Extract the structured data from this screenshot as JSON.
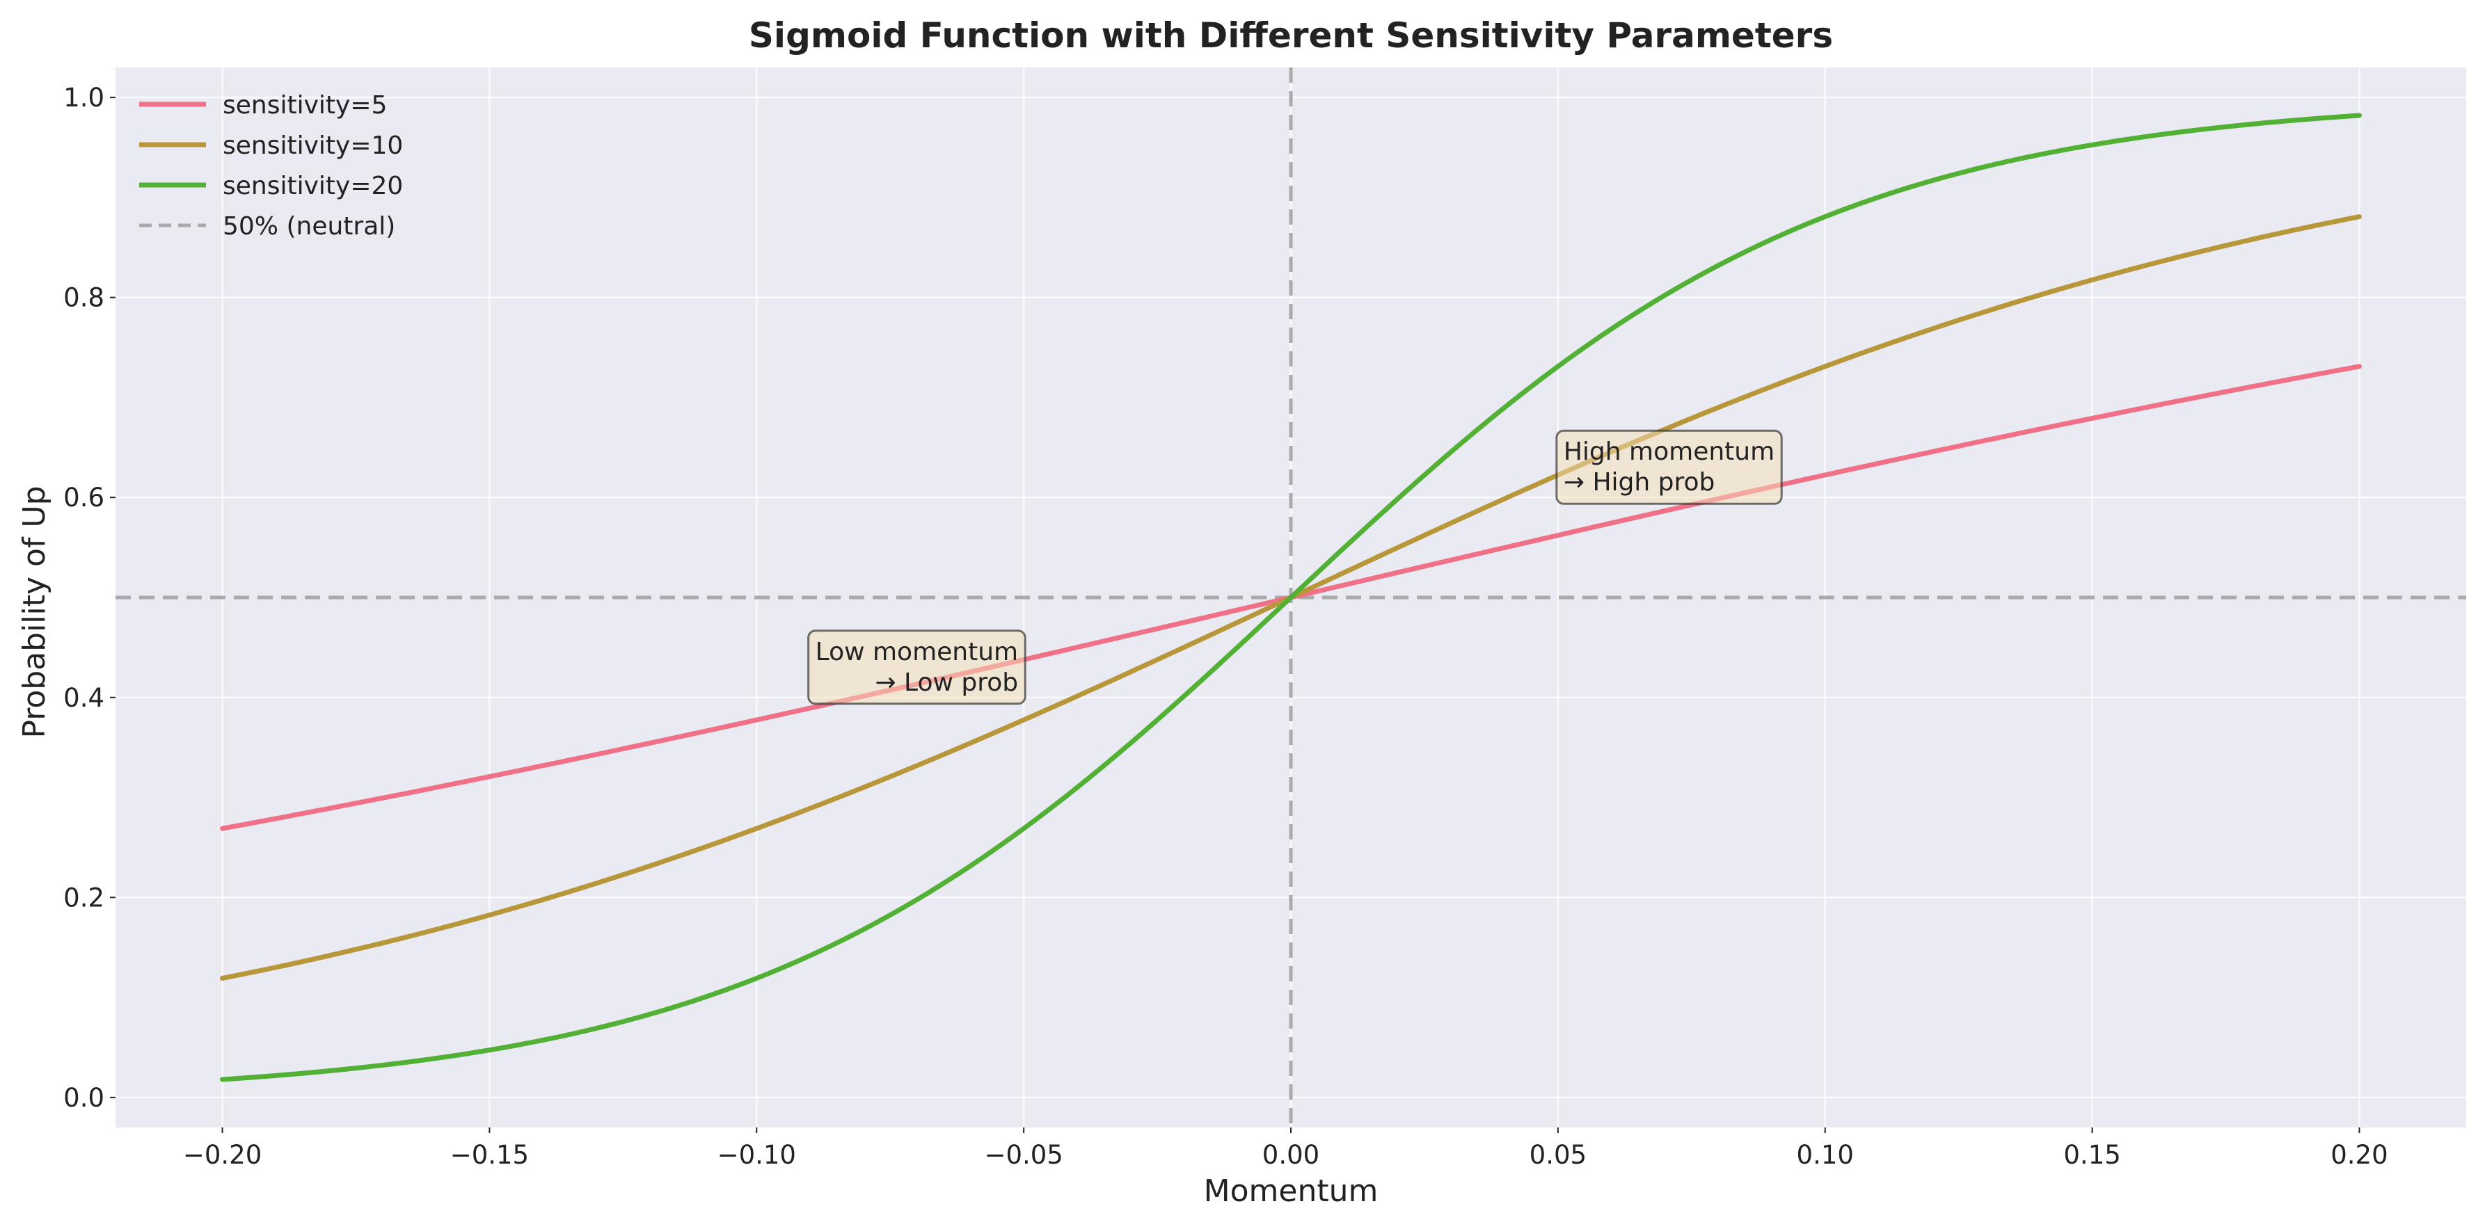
{
  "chart_data": {
    "type": "line",
    "title": "Sigmoid Function with Different Sensitivity Parameters",
    "xlabel": "Momentum",
    "ylabel": "Probability of Up",
    "xlim": [
      -0.22,
      0.22
    ],
    "ylim": [
      -0.03,
      1.03
    ],
    "xticks": [
      -0.2,
      -0.15,
      -0.1,
      -0.05,
      0.0,
      0.05,
      0.1,
      0.15,
      0.2
    ],
    "xtick_labels": [
      "−0.20",
      "−0.15",
      "−0.10",
      "−0.05",
      "0.00",
      "0.05",
      "0.10",
      "0.15",
      "0.20"
    ],
    "yticks": [
      0.0,
      0.2,
      0.4,
      0.6,
      0.8,
      1.0
    ],
    "ytick_labels": [
      "0.0",
      "0.2",
      "0.4",
      "0.6",
      "0.8",
      "1.0"
    ],
    "grid": true,
    "legend_position": "top-left",
    "x": [
      -0.2,
      -0.15,
      -0.1,
      -0.05,
      0.0,
      0.05,
      0.1,
      0.15,
      0.2
    ],
    "series": [
      {
        "name": "sensitivity=5",
        "color": "#f07088",
        "values": [
          0.269,
          0.321,
          0.378,
          0.438,
          0.5,
          0.562,
          0.622,
          0.679,
          0.731
        ]
      },
      {
        "name": "sensitivity=10",
        "color": "#b8963a",
        "values": [
          0.119,
          0.182,
          0.269,
          0.378,
          0.5,
          0.622,
          0.731,
          0.818,
          0.881
        ]
      },
      {
        "name": "sensitivity=20",
        "color": "#52b035",
        "values": [
          0.018,
          0.047,
          0.119,
          0.269,
          0.5,
          0.731,
          0.881,
          0.953,
          0.982
        ]
      }
    ],
    "reference_lines": [
      {
        "name": "50% (neutral)",
        "orientation": "horizontal",
        "value": 0.5,
        "style": "dashed",
        "color": "#aaaaaa"
      },
      {
        "orientation": "vertical",
        "value": 0.0,
        "style": "dashed",
        "color": "#aaaaaa"
      }
    ],
    "annotations": [
      {
        "lines": [
          "Low momentum",
          "→ Low prob"
        ],
        "x": -0.05,
        "y": 0.4,
        "align": "right"
      },
      {
        "lines": [
          "High momentum",
          "→ High prob"
        ],
        "x": 0.05,
        "y": 0.6,
        "align": "left"
      }
    ]
  }
}
